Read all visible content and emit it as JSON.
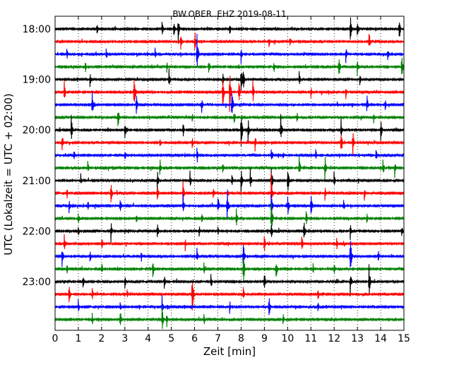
{
  "chart_data": {
    "type": "line",
    "title": "BW.OBER..EHZ 2019-08-11",
    "xlabel": "Zeit  [min]",
    "ylabel": "UTC (Lokalzeit = UTC + 02:00)",
    "xlim": [
      0,
      15
    ],
    "x_ticks": [
      "0",
      "1",
      "2",
      "3",
      "4",
      "5",
      "6",
      "7",
      "8",
      "9",
      "10",
      "11",
      "12",
      "13",
      "14",
      "15"
    ],
    "y_ticks": [
      "18:00",
      "19:00",
      "20:00",
      "21:00",
      "22:00",
      "23:00"
    ],
    "grid": "vertical-dotted",
    "trace_interval_min": 15,
    "start_time": "18:00",
    "traces": [
      {
        "label": "18:00",
        "color": "#000000",
        "events": [
          [
            5.3,
            0.6
          ],
          [
            1.8,
            0.3
          ],
          [
            4.6,
            0.5
          ],
          [
            5.1,
            0.4
          ],
          [
            7.5,
            0.3
          ],
          [
            12.7,
            0.7
          ],
          [
            13.0,
            0.4
          ],
          [
            14.8,
            0.6
          ]
        ]
      },
      {
        "label": "18:15",
        "color": "#ff0000",
        "events": [
          [
            5.4,
            0.4
          ],
          [
            6.0,
            0.5
          ],
          [
            9.2,
            0.3
          ],
          [
            10.1,
            0.3
          ],
          [
            13.5,
            0.5
          ]
        ]
      },
      {
        "label": "18:30",
        "color": "#0000ff",
        "events": [
          [
            0.5,
            0.3
          ],
          [
            2.2,
            0.3
          ],
          [
            4.3,
            0.3
          ],
          [
            6.1,
            1.0
          ],
          [
            8.0,
            0.4
          ],
          [
            12.5,
            0.4
          ],
          [
            14.3,
            0.3
          ]
        ]
      },
      {
        "label": "18:45",
        "color": "#008000",
        "events": [
          [
            1.3,
            0.3
          ],
          [
            4.8,
            0.3
          ],
          [
            6.6,
            0.4
          ],
          [
            9.4,
            0.3
          ],
          [
            12.2,
            0.6
          ],
          [
            13.0,
            0.4
          ],
          [
            14.9,
            0.6
          ]
        ]
      },
      {
        "label": "19:00",
        "color": "#000000",
        "events": [
          [
            1.5,
            0.3
          ],
          [
            4.9,
            0.5
          ],
          [
            7.2,
            0.4
          ],
          [
            8.0,
            0.7
          ],
          [
            8.1,
            0.5
          ],
          [
            10.5,
            0.4
          ],
          [
            13.1,
            0.3
          ]
        ]
      },
      {
        "label": "19:15",
        "color": "#ff0000",
        "events": [
          [
            0.4,
            0.5
          ],
          [
            3.4,
            1.0
          ],
          [
            7.2,
            0.8
          ],
          [
            7.5,
            1.0
          ],
          [
            7.9,
            0.6
          ],
          [
            8.5,
            0.5
          ],
          [
            11.0,
            0.3
          ],
          [
            12.5,
            0.3
          ]
        ]
      },
      {
        "label": "19:30",
        "color": "#0000ff",
        "events": [
          [
            1.6,
            0.6
          ],
          [
            3.5,
            0.5
          ],
          [
            6.3,
            0.4
          ],
          [
            7.6,
            0.8
          ],
          [
            13.4,
            0.5
          ],
          [
            14.2,
            0.3
          ]
        ]
      },
      {
        "label": "19:45",
        "color": "#008000",
        "events": [
          [
            2.7,
            0.6
          ],
          [
            5.9,
            0.3
          ],
          [
            7.7,
            0.4
          ],
          [
            10.4,
            0.3
          ],
          [
            13.7,
            0.3
          ]
        ]
      },
      {
        "label": "20:00",
        "color": "#000000",
        "events": [
          [
            0.7,
            0.6
          ],
          [
            3.0,
            0.5
          ],
          [
            5.5,
            0.4
          ],
          [
            8.0,
            0.9
          ],
          [
            8.3,
            0.6
          ],
          [
            9.7,
            0.7
          ],
          [
            12.3,
            0.5
          ],
          [
            14.0,
            0.5
          ]
        ]
      },
      {
        "label": "20:15",
        "color": "#ff0000",
        "events": [
          [
            0.3,
            0.5
          ],
          [
            4.5,
            0.3
          ],
          [
            5.9,
            0.4
          ],
          [
            8.6,
            0.4
          ],
          [
            12.3,
            0.7
          ],
          [
            12.8,
            0.6
          ]
        ]
      },
      {
        "label": "20:30",
        "color": "#0000ff",
        "events": [
          [
            0.8,
            0.3
          ],
          [
            3.0,
            0.3
          ],
          [
            6.1,
            0.4
          ],
          [
            9.3,
            0.5
          ],
          [
            9.8,
            0.3
          ],
          [
            11.2,
            0.3
          ],
          [
            13.8,
            0.3
          ]
        ]
      },
      {
        "label": "20:45",
        "color": "#008000",
        "events": [
          [
            1.4,
            0.3
          ],
          [
            4.5,
            0.5
          ],
          [
            7.2,
            0.4
          ],
          [
            10.5,
            0.5
          ],
          [
            11.6,
            0.6
          ],
          [
            14.1,
            0.4
          ],
          [
            14.6,
            0.4
          ]
        ]
      },
      {
        "label": "21:00",
        "color": "#000000",
        "events": [
          [
            1.1,
            0.3
          ],
          [
            4.4,
            0.5
          ],
          [
            5.8,
            0.4
          ],
          [
            7.6,
            0.3
          ],
          [
            8.0,
            0.6
          ],
          [
            8.4,
            0.5
          ],
          [
            9.3,
            0.8
          ],
          [
            10.0,
            0.7
          ],
          [
            12.0,
            0.4
          ]
        ]
      },
      {
        "label": "21:15",
        "color": "#ff0000",
        "events": [
          [
            0.5,
            0.3
          ],
          [
            2.4,
            0.5
          ],
          [
            4.4,
            0.5
          ],
          [
            5.5,
            0.5
          ],
          [
            6.8,
            0.4
          ],
          [
            9.3,
            0.8
          ],
          [
            11.6,
            0.3
          ],
          [
            13.3,
            0.3
          ]
        ]
      },
      {
        "label": "21:30",
        "color": "#0000ff",
        "events": [
          [
            0.6,
            0.3
          ],
          [
            1.4,
            0.3
          ],
          [
            2.8,
            0.4
          ],
          [
            5.5,
            0.5
          ],
          [
            7.0,
            0.5
          ],
          [
            7.4,
            0.9
          ],
          [
            9.3,
            0.7
          ],
          [
            10.0,
            0.5
          ],
          [
            11.0,
            0.6
          ],
          [
            12.4,
            0.4
          ]
        ]
      },
      {
        "label": "21:45",
        "color": "#008000",
        "events": [
          [
            1.0,
            0.3
          ],
          [
            3.5,
            0.3
          ],
          [
            6.3,
            0.3
          ],
          [
            7.8,
            0.4
          ],
          [
            9.3,
            0.9
          ],
          [
            10.8,
            0.4
          ],
          [
            13.4,
            0.3
          ]
        ]
      },
      {
        "label": "22:00",
        "color": "#000000",
        "events": [
          [
            1.0,
            0.3
          ],
          [
            2.4,
            0.5
          ],
          [
            4.4,
            0.4
          ],
          [
            6.2,
            0.3
          ],
          [
            7.0,
            0.3
          ],
          [
            9.3,
            0.5
          ],
          [
            10.7,
            0.6
          ],
          [
            12.7,
            0.4
          ],
          [
            14.9,
            0.3
          ]
        ]
      },
      {
        "label": "22:15",
        "color": "#ff0000",
        "events": [
          [
            0.4,
            0.4
          ],
          [
            2.0,
            0.3
          ],
          [
            5.6,
            0.3
          ],
          [
            9.0,
            0.5
          ],
          [
            10.6,
            0.4
          ],
          [
            12.1,
            0.3
          ]
        ]
      },
      {
        "label": "22:30",
        "color": "#0000ff",
        "events": [
          [
            0.3,
            0.5
          ],
          [
            1.5,
            0.3
          ],
          [
            3.7,
            0.3
          ],
          [
            6.1,
            0.4
          ],
          [
            8.1,
            0.8
          ],
          [
            12.7,
            1.0
          ],
          [
            13.9,
            0.3
          ]
        ]
      },
      {
        "label": "22:45",
        "color": "#008000",
        "events": [
          [
            0.5,
            0.3
          ],
          [
            2.0,
            0.3
          ],
          [
            4.2,
            0.6
          ],
          [
            6.4,
            0.3
          ],
          [
            8.1,
            0.8
          ],
          [
            9.5,
            0.6
          ],
          [
            11.1,
            0.3
          ],
          [
            12.0,
            0.3
          ]
        ]
      },
      {
        "label": "23:00",
        "color": "#000000",
        "events": [
          [
            1.2,
            0.3
          ],
          [
            3.0,
            0.3
          ],
          [
            4.7,
            0.3
          ],
          [
            6.7,
            0.4
          ],
          [
            9.0,
            0.5
          ],
          [
            12.7,
            0.6
          ],
          [
            13.5,
            0.8
          ]
        ]
      },
      {
        "label": "23:15",
        "color": "#ff0000",
        "events": [
          [
            0.6,
            0.5
          ],
          [
            1.6,
            0.3
          ],
          [
            3.1,
            0.3
          ],
          [
            5.9,
            1.0
          ],
          [
            8.1,
            0.3
          ],
          [
            11.3,
            0.3
          ]
        ]
      },
      {
        "label": "23:30",
        "color": "#0000ff",
        "events": [
          [
            1.0,
            0.3
          ],
          [
            2.8,
            0.3
          ],
          [
            4.6,
            0.5
          ],
          [
            7.5,
            0.3
          ],
          [
            9.2,
            0.5
          ],
          [
            11.3,
            0.3
          ]
        ]
      },
      {
        "label": "23:45",
        "color": "#008000",
        "events": [
          [
            1.6,
            0.3
          ],
          [
            2.8,
            0.5
          ],
          [
            4.6,
            0.6
          ],
          [
            4.8,
            0.4
          ],
          [
            6.4,
            0.3
          ],
          [
            9.8,
            0.3
          ]
        ]
      }
    ]
  }
}
